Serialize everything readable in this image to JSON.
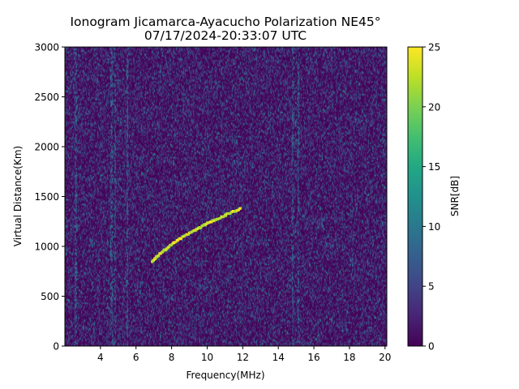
{
  "chart_data": {
    "type": "heatmap",
    "title_line1": "Ionogram Jicamarca-Ayacucho Polarization NE45°",
    "title_line2": "07/17/2024-20:33:07 UTC",
    "xlabel": "Frequency(MHz)",
    "ylabel": "Virtual Distance(Km)",
    "xlim": [
      2.0,
      20.1
    ],
    "ylim": [
      0,
      3000
    ],
    "x_ticks": [
      4,
      6,
      8,
      10,
      12,
      14,
      16,
      18,
      20
    ],
    "y_ticks": [
      0,
      500,
      1000,
      1500,
      2000,
      2500,
      3000
    ],
    "colorbar": {
      "label": "SNR[dB]",
      "range": [
        0,
        25
      ],
      "ticks": [
        0,
        5,
        10,
        15,
        20,
        25
      ],
      "colormap": "viridis"
    },
    "trace": {
      "name": "echo trace",
      "snr_db": 22,
      "points": [
        [
          6.9,
          850
        ],
        [
          7.2,
          900
        ],
        [
          7.6,
          960
        ],
        [
          8.0,
          1020
        ],
        [
          8.5,
          1080
        ],
        [
          9.0,
          1130
        ],
        [
          9.5,
          1180
        ],
        [
          10.0,
          1230
        ],
        [
          10.5,
          1270
        ],
        [
          11.0,
          1310
        ],
        [
          11.5,
          1350
        ],
        [
          11.9,
          1380
        ]
      ]
    },
    "noise_floor_snr_db": [
      0,
      6
    ],
    "vertical_interference_mhz": [
      2.6,
      4.6,
      4.8,
      5.5,
      14.8,
      15.1
    ]
  }
}
